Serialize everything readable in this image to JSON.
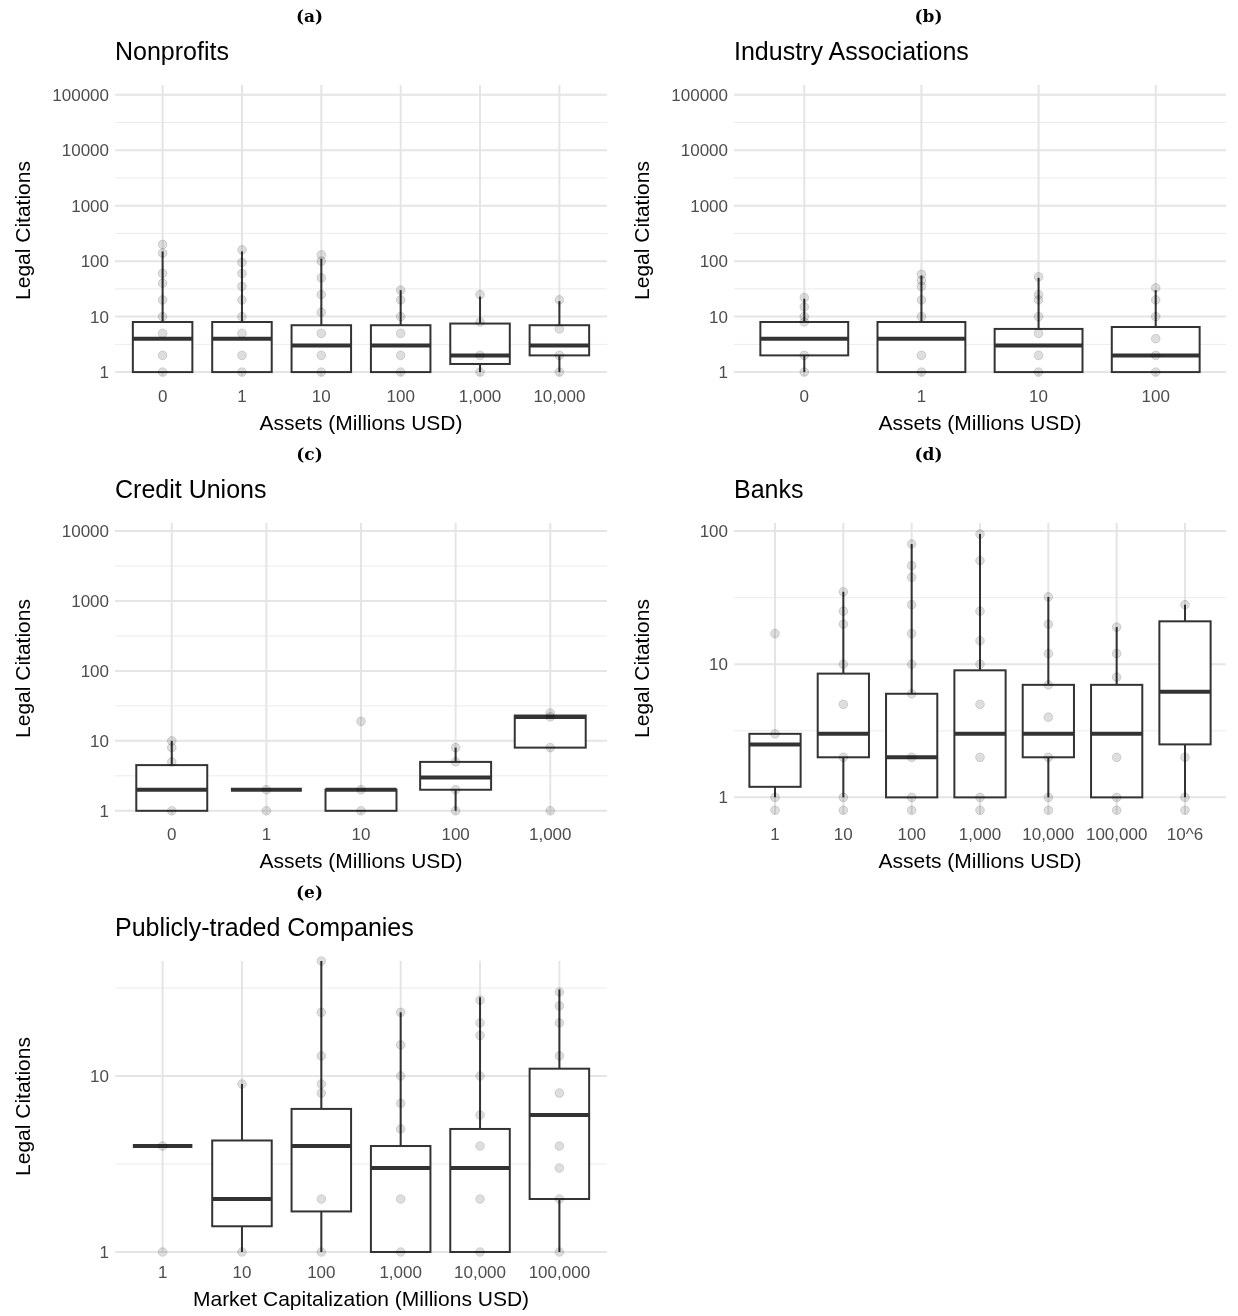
{
  "chart_data": [
    {
      "type": "box",
      "title": "(a)",
      "subtitle": "Nonprofits",
      "xlabel": "Assets (Millions USD)",
      "ylabel": "Legal Citations",
      "log": true,
      "grid": true,
      "marker": "circle",
      "color": "#333333",
      "ylim": [
        0.85,
        150000
      ],
      "yticks": [
        1,
        {
          "value": 3.162,
          "label": null
        },
        10,
        {
          "value": 31.62,
          "label": null
        },
        100,
        {
          "value": 316.2,
          "label": null
        },
        1000,
        {
          "value": 3162,
          "label": null
        },
        10000,
        {
          "value": 31623,
          "label": null
        },
        100000
      ],
      "categories": [
        "0",
        "1",
        "10",
        "100",
        "1,000",
        "10,000"
      ],
      "boxes": [
        {
          "low": 1,
          "q1": 1,
          "median": 4,
          "q3": 8,
          "high": 150
        },
        {
          "low": 1,
          "q1": 1,
          "median": 4,
          "q3": 8,
          "high": 150
        },
        {
          "low": 1,
          "q1": 1,
          "median": 3,
          "q3": 7,
          "high": 110
        },
        {
          "low": 1,
          "q1": 1,
          "median": 3,
          "q3": 7,
          "high": 30
        },
        {
          "low": 1,
          "q1": 1.4,
          "median": 2,
          "q3": 7.5,
          "high": 23
        },
        {
          "low": 1,
          "q1": 2,
          "median": 3,
          "q3": 7,
          "high": 19
        }
      ],
      "series": [
        {
          "type": "scatter",
          "color": "#000000",
          "x": [
            "0",
            "0",
            "0",
            "0",
            "0",
            "0",
            "0",
            "0",
            "0",
            "1",
            "1",
            "1",
            "1",
            "1",
            "1",
            "1",
            "1",
            "1",
            "10",
            "10",
            "10",
            "10",
            "10",
            "10",
            "10",
            "10",
            "100",
            "100",
            "100",
            "100",
            "100",
            "100",
            "1,000",
            "1,000",
            "1,000",
            "1,000",
            "1,000",
            "10,000",
            "10,000",
            "10,000",
            "10,000",
            "10,000"
          ],
          "values": [
            1,
            2,
            5,
            10,
            20,
            40,
            60,
            140,
            200,
            1,
            2,
            5,
            10,
            20,
            35,
            60,
            95,
            160,
            1,
            2,
            5,
            12,
            25,
            50,
            100,
            130,
            1,
            2,
            5,
            10,
            20,
            30,
            1,
            2,
            8,
            null,
            25,
            1,
            2,
            6,
            null,
            20
          ]
        }
      ]
    },
    {
      "type": "box",
      "title": "(b)",
      "subtitle": "Industry Associations",
      "xlabel": "Assets (Millions USD)",
      "ylabel": "Legal Citations",
      "log": true,
      "grid": true,
      "marker": "circle",
      "color": "#333333",
      "ylim": [
        0.85,
        150000
      ],
      "yticks": [
        1,
        {
          "value": 3.162,
          "label": null
        },
        10,
        {
          "value": 31.62,
          "label": null
        },
        100,
        {
          "value": 316.2,
          "label": null
        },
        1000,
        {
          "value": 3162,
          "label": null
        },
        10000,
        {
          "value": 31623,
          "label": null
        },
        100000
      ],
      "categories": [
        "0",
        "1",
        "10",
        "100"
      ],
      "boxes": [
        {
          "low": 1,
          "q1": 2,
          "median": 4,
          "q3": 8,
          "high": 21
        },
        {
          "low": 1,
          "q1": 1,
          "median": 4,
          "q3": 8,
          "high": 55
        },
        {
          "low": 1,
          "q1": 1,
          "median": 3,
          "q3": 6,
          "high": 50
        },
        {
          "low": 1,
          "q1": 1,
          "median": 2,
          "q3": 6.5,
          "high": 30
        }
      ],
      "series": [
        {
          "type": "scatter",
          "color": "#000000",
          "x": [
            "0",
            "0",
            "0",
            "0",
            "0",
            "0",
            "1",
            "1",
            "1",
            "1",
            "1",
            "1",
            "1",
            "10",
            "10",
            "10",
            "10",
            "10",
            "10",
            "10",
            "100",
            "100",
            "100",
            "100",
            "100",
            "100",
            "100"
          ],
          "values": [
            1,
            2,
            8,
            10,
            15,
            22,
            1,
            2,
            10,
            20,
            35,
            45,
            58,
            1,
            2,
            5,
            10,
            20,
            25,
            52,
            1,
            2,
            4,
            10,
            20,
            null,
            33
          ]
        }
      ]
    },
    {
      "type": "box",
      "title": "(c)",
      "subtitle": "Credit Unions",
      "xlabel": "Assets (Millions USD)",
      "ylabel": "Legal Citations",
      "log": true,
      "grid": true,
      "marker": "circle",
      "color": "#333333",
      "ylim": [
        0.9,
        13000
      ],
      "yticks": [
        1,
        {
          "value": 3.162,
          "label": null
        },
        10,
        {
          "value": 31.62,
          "label": null
        },
        100,
        {
          "value": 316.2,
          "label": null
        },
        1000,
        {
          "value": 3162,
          "label": null
        },
        10000
      ],
      "categories": [
        "0",
        "1",
        "10",
        "100",
        "1,000"
      ],
      "boxes": [
        {
          "low": 1,
          "q1": 1,
          "median": 2,
          "q3": 4.5,
          "high": 10
        },
        {
          "low": 2,
          "q1": 2,
          "median": 2,
          "q3": 2,
          "high": 2
        },
        {
          "low": 1,
          "q1": 1,
          "median": 2,
          "q3": 2,
          "high": 2
        },
        {
          "low": 1,
          "q1": 2,
          "median": 3,
          "q3": 5,
          "high": 8
        },
        {
          "low": 8,
          "q1": 8,
          "median": 22,
          "q3": 23,
          "high": 23
        }
      ],
      "series": [
        {
          "type": "scatter",
          "color": "#000000",
          "x": [
            "0",
            "0",
            "0",
            "0",
            "1",
            "1",
            "10",
            "10",
            "10",
            "100",
            "100",
            "100",
            "100",
            "1,000",
            "1,000",
            "1,000",
            "1,000"
          ],
          "values": [
            1,
            5,
            8,
            10,
            1,
            2,
            1,
            2,
            19,
            1,
            2,
            5,
            8,
            1,
            8,
            22,
            25
          ]
        }
      ]
    },
    {
      "type": "box",
      "title": "(d)",
      "subtitle": "Banks",
      "xlabel": "Assets (Millions USD)",
      "ylabel": "Legal Citations",
      "log": true,
      "grid": true,
      "marker": "circle",
      "color": "#333333",
      "ylim": [
        0.75,
        115
      ],
      "yticks": [
        1,
        {
          "value": 3.162,
          "label": null
        },
        10,
        {
          "value": 31.62,
          "label": null
        },
        100
      ],
      "categories": [
        "1",
        "10",
        "100",
        "1,000",
        "10,000",
        "100,000",
        "10^6"
      ],
      "boxes": [
        {
          "low": 1,
          "q1": 1.2,
          "median": 2.5,
          "q3": 3,
          "high": 3
        },
        {
          "low": 1,
          "q1": 2,
          "median": 3,
          "q3": 8.5,
          "high": 35
        },
        {
          "low": 1,
          "q1": 1,
          "median": 2,
          "q3": 6,
          "high": 80
        },
        {
          "low": 1,
          "q1": 1,
          "median": 3,
          "q3": 9,
          "high": 95
        },
        {
          "low": 1,
          "q1": 2,
          "median": 3,
          "q3": 7,
          "high": 32
        },
        {
          "low": 1,
          "q1": 1,
          "median": 3,
          "q3": 7,
          "high": 19
        },
        {
          "low": 1,
          "q1": 2.5,
          "median": 6.2,
          "q3": 21,
          "high": 28
        }
      ],
      "series": [
        {
          "type": "scatter",
          "color": "#000000",
          "x": [
            "1",
            "1",
            "1",
            "1",
            "10",
            "10",
            "10",
            "10",
            "10",
            "10",
            "10",
            "10",
            "100",
            "100",
            "100",
            "100",
            "100",
            "100",
            "100",
            "100",
            "100",
            "100",
            "1,000",
            "1,000",
            "1,000",
            "1,000",
            "1,000",
            "1,000",
            "1,000",
            "1,000",
            "1,000",
            "10,000",
            "10,000",
            "10,000",
            "10,000",
            "10,000",
            "10,000",
            "10,000",
            "10,000",
            "100,000",
            "100,000",
            "100,000",
            "100,000",
            "100,000",
            "100,000",
            "10^6",
            "10^6",
            "10^6",
            "10^6"
          ],
          "values": [
            0.8,
            1,
            3,
            17,
            0.8,
            1,
            2,
            5,
            10,
            20,
            25,
            35,
            0.8,
            1,
            2,
            6,
            10,
            17,
            28,
            45,
            55,
            80,
            0.8,
            1,
            2,
            5,
            10,
            15,
            25,
            60,
            95,
            0.8,
            1,
            2,
            4,
            7,
            12,
            20,
            32,
            0.8,
            1,
            2,
            8,
            12,
            19,
            0.8,
            1,
            2,
            28
          ]
        }
      ]
    },
    {
      "type": "box",
      "title": "(e)",
      "subtitle": "Publicly-traded Companies",
      "xlabel": "Market Capitalization (Millions USD)",
      "ylabel": "Legal Citations",
      "log": true,
      "grid": true,
      "marker": "circle",
      "color": "#333333",
      "ylim": [
        1,
        45
      ],
      "yticks": [
        1,
        {
          "value": 3.162,
          "label": null
        },
        10,
        {
          "value": 31.62,
          "label": null
        }
      ],
      "categories": [
        "1",
        "10",
        "100",
        "1,000",
        "10,000",
        "100,000"
      ],
      "boxes": [
        {
          "low": 4,
          "q1": 4,
          "median": 4,
          "q3": 4,
          "high": 4
        },
        {
          "low": 1,
          "q1": 1.4,
          "median": 2,
          "q3": 4.3,
          "high": 9
        },
        {
          "low": 1,
          "q1": 1.7,
          "median": 4,
          "q3": 6.5,
          "high": 45
        },
        {
          "low": 1,
          "q1": 1,
          "median": 3,
          "q3": 4,
          "high": 23
        },
        {
          "low": 1,
          "q1": 1,
          "median": 3,
          "q3": 5,
          "high": 28
        },
        {
          "low": 1,
          "q1": 2,
          "median": 6,
          "q3": 11,
          "high": 31
        }
      ],
      "series": [
        {
          "type": "scatter",
          "color": "#000000",
          "x": [
            "1",
            "1",
            "10",
            "10",
            "100",
            "100",
            "100",
            "100",
            "100",
            "100",
            "100",
            "1,000",
            "1,000",
            "1,000",
            "1,000",
            "1,000",
            "1,000",
            "1,000",
            "10,000",
            "10,000",
            "10,000",
            "10,000",
            "10,000",
            "10,000",
            "10,000",
            "10,000",
            "100,000",
            "100,000",
            "100,000",
            "100,000",
            "100,000",
            "100,000",
            "100,000",
            "100,000",
            "100,000"
          ],
          "values": [
            1,
            4,
            1,
            9,
            1,
            2,
            8,
            9,
            13,
            23,
            45,
            1,
            2,
            5,
            7,
            10,
            15,
            23,
            1,
            2,
            4,
            6,
            10,
            17,
            20,
            27,
            1,
            2,
            3,
            4,
            8,
            13,
            20,
            25,
            30
          ]
        }
      ]
    }
  ]
}
